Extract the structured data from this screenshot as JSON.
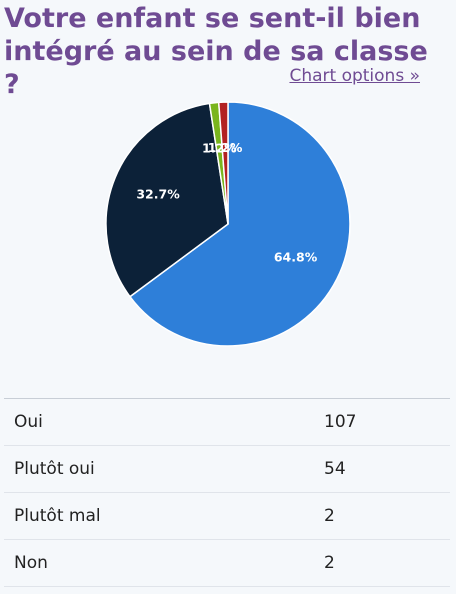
{
  "page": {
    "title": "Votre enfant se sent-il bien intégré au sein de sa classe ?",
    "chart_options_label": "Chart options »"
  },
  "chart_data": {
    "type": "pie",
    "categories": [
      "Oui",
      "Plutôt oui",
      "Plutôt mal",
      "Non"
    ],
    "values": [
      107,
      54,
      2,
      2
    ],
    "slice_labels": [
      "64.8%",
      "32.7%",
      "1.2%",
      "1.2%"
    ],
    "colors": [
      "#2e7fd9",
      "#0c2138",
      "#7ab51d",
      "#b22222"
    ]
  },
  "table": {
    "rows": [
      {
        "category": "Oui",
        "value": "107"
      },
      {
        "category": "Plutôt oui",
        "value": "54"
      },
      {
        "category": "Plutôt mal",
        "value": "2"
      },
      {
        "category": "Non",
        "value": "2"
      }
    ]
  }
}
